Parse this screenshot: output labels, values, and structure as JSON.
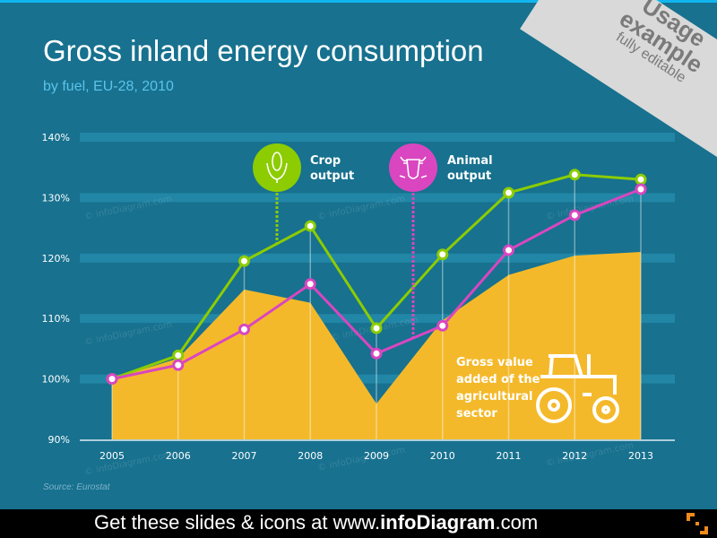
{
  "title": "Gross inland energy consumption",
  "subtitle": "by fuel, EU-28, 2010",
  "ribbon": {
    "line1": "Usage",
    "line2": "example",
    "line3": "fully editable"
  },
  "source": "Source:  Eurostat",
  "watermark": "© infoDiagram.com",
  "footer": {
    "prefix": "Get these slides & icons at www.",
    "brand": "infoDiagram",
    "suffix": ".com"
  },
  "colors": {
    "background": "#17718f",
    "crop": "#8ccc00",
    "animal": "#d946c0",
    "gva": "#f4b92a",
    "band": "#2286a6"
  },
  "annotations": {
    "crop": {
      "line1": "Crop",
      "line2": "output",
      "icon": "corn-icon"
    },
    "animal": {
      "line1": "Animal",
      "line2": "output",
      "icon": "cow-icon"
    },
    "gva": {
      "line1": "Gross value",
      "line2": "added of the",
      "line3": "agricultural",
      "line4": "sector",
      "icon": "tractor-icon"
    }
  },
  "chart_data": {
    "type": "line",
    "categories": [
      "2005",
      "2006",
      "2007",
      "2008",
      "2009",
      "2010",
      "2011",
      "2012",
      "2013"
    ],
    "ylim": [
      90,
      140
    ],
    "yticks": [
      "90%",
      "100%",
      "110%",
      "120%",
      "130%",
      "140%"
    ],
    "grid": true,
    "series": [
      {
        "name": "Gross value added of the agricultural sector",
        "kind": "area",
        "color": "#f4b92a",
        "values": [
          100,
          103.4,
          114.8,
          112.6,
          95.9,
          109.7,
          117.2,
          120.4,
          121.0
        ]
      },
      {
        "name": "Crop output",
        "kind": "line",
        "color": "#8ccc00",
        "values": [
          100,
          103.9,
          119.5,
          125.3,
          108.4,
          120.6,
          130.8,
          133.8,
          133.0
        ]
      },
      {
        "name": "Animal output",
        "kind": "line",
        "color": "#d946c0",
        "values": [
          100,
          102.3,
          108.2,
          115.7,
          104.2,
          108.8,
          121.3,
          127.1,
          131.4
        ]
      }
    ]
  }
}
